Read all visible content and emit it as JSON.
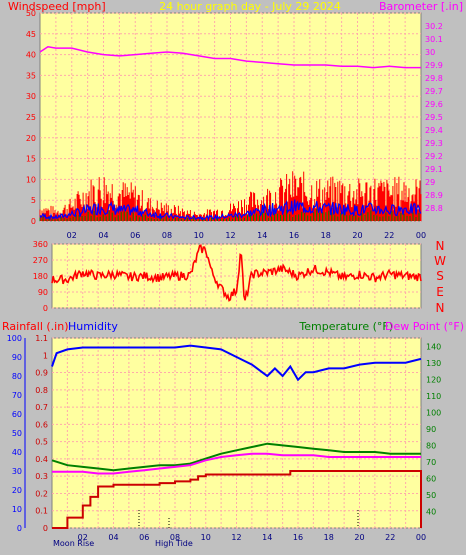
{
  "header": {
    "left_title": "Windspeed [mph]",
    "center_title": "24 hour graph day - July 29 2024",
    "right_title": "Barometer [.in]"
  },
  "colors": {
    "background": "#c0c0c0",
    "plot_bg": "#ffffa0",
    "grid": "#ffaaaa",
    "wind": "#ff0000",
    "gust_blue": "#0000ff",
    "barometer": "#ff00ff",
    "temperature": "#008000",
    "dew_point": "#ff00ff",
    "rain": "#cc0000",
    "humidity": "#0000ff",
    "axis_left": "#ff0000",
    "axis_right": "#ff00ff",
    "axis_temp": "#008000",
    "header_center": "#ffff00"
  },
  "x_ticks": [
    "02",
    "04",
    "06",
    "08",
    "10",
    "12",
    "14",
    "16",
    "18",
    "20",
    "22",
    "00"
  ],
  "panel3_labels": {
    "rainfall": "Rainfall (.in)",
    "humidity": "Humidity",
    "temperature": "Temperature (°F)",
    "dew_point": "Dew Point (°F)"
  },
  "compass": [
    "N",
    "W",
    "S",
    "E",
    "N"
  ],
  "markers": {
    "moon_rise": "Moon Rise",
    "high_tide": "High Tide"
  },
  "chart_data": [
    {
      "type": "line",
      "title": "24 hour graph day - July 29 2024",
      "x_unit": "hour",
      "xlim": [
        0,
        24
      ],
      "y_left": {
        "label": "Windspeed [mph]",
        "ylim": [
          0,
          50
        ],
        "ticks": [
          0,
          5,
          10,
          15,
          20,
          25,
          30,
          35,
          40,
          45,
          50
        ]
      },
      "y_right": {
        "label": "Barometer [.in]",
        "ylim": [
          28.7,
          30.3
        ],
        "ticks": [
          "28.8",
          "28.9",
          "29",
          "29.1",
          "29.2",
          "29.3",
          "29.4",
          "29.5",
          "29.6",
          "29.7",
          "29.8",
          "29.9",
          "30",
          "30.1",
          "30.2"
        ]
      },
      "series": [
        {
          "name": "Barometer [.in]",
          "axis": "right",
          "x": [
            0,
            0.5,
            1,
            2,
            3,
            4,
            5,
            6,
            7,
            8,
            9,
            10,
            11,
            12,
            13,
            14,
            15,
            16,
            17,
            18,
            19,
            20,
            21,
            22,
            23,
            24
          ],
          "y": [
            30.0,
            30.04,
            30.03,
            30.03,
            30.0,
            29.98,
            29.97,
            29.98,
            29.99,
            30.0,
            29.99,
            29.97,
            29.95,
            29.95,
            29.93,
            29.92,
            29.91,
            29.9,
            29.9,
            29.9,
            29.89,
            29.89,
            29.88,
            29.89,
            29.88,
            29.88
          ]
        },
        {
          "name": "Wind gust envelope",
          "axis": "left",
          "x": [
            0,
            1,
            2,
            3,
            4,
            5,
            6,
            7,
            8,
            9,
            10,
            11,
            12,
            13,
            14,
            15,
            16,
            17,
            18,
            19,
            20,
            21,
            22,
            23,
            24
          ],
          "y": [
            4,
            3,
            5,
            9,
            11,
            9,
            8,
            5,
            4,
            3,
            2,
            3,
            4,
            6,
            7,
            9,
            11,
            10,
            9,
            10,
            9,
            10,
            9,
            10,
            9
          ]
        },
        {
          "name": "Wind average",
          "axis": "left",
          "x": [
            0,
            1,
            2,
            3,
            4,
            5,
            6,
            7,
            8,
            9,
            10,
            11,
            12,
            13,
            14,
            15,
            16,
            17,
            18,
            19,
            20,
            21,
            22,
            23,
            24
          ],
          "y": [
            1.5,
            1,
            2,
            3,
            4,
            3,
            3,
            2,
            1.5,
            1,
            1,
            1,
            1.5,
            2,
            3,
            3.5,
            4,
            4,
            3.5,
            3.5,
            3,
            3.5,
            3,
            3.5,
            3
          ]
        }
      ]
    },
    {
      "type": "line",
      "title": "Wind direction",
      "x_unit": "hour",
      "xlim": [
        0,
        24
      ],
      "y_left": {
        "label": "",
        "ylim": [
          0,
          360
        ],
        "ticks": [
          0,
          90,
          180,
          270,
          360
        ]
      },
      "series": [
        {
          "name": "Wind direction",
          "x": [
            0,
            1,
            2,
            3,
            4,
            5,
            6,
            7,
            8,
            9,
            9.6,
            10,
            10.4,
            11,
            11.5,
            12,
            12.3,
            12.5,
            13,
            14,
            15,
            16,
            17,
            18,
            19,
            20,
            21,
            22,
            23,
            24
          ],
          "y": [
            160,
            160,
            200,
            180,
            190,
            175,
            180,
            170,
            180,
            185,
            330,
            330,
            200,
            110,
            60,
            100,
            340,
            20,
            190,
            200,
            220,
            180,
            220,
            200,
            170,
            190,
            170,
            190,
            180,
            175
          ]
        }
      ]
    },
    {
      "type": "line",
      "title": "",
      "x_unit": "hour",
      "xlim": [
        0,
        24
      ],
      "y_left": {
        "label": "Rainfall (.in)",
        "ylim": [
          0,
          1.1
        ],
        "ticks": [
          "0",
          "0.1",
          "0.2",
          "0.3",
          "0.4",
          "0.5",
          "0.6",
          "0.7",
          "0.8",
          "0.9",
          "1",
          "1.1"
        ]
      },
      "y_left_outer": {
        "label": "Humidity",
        "ylim": [
          0,
          100
        ],
        "ticks": [
          0,
          10,
          20,
          30,
          40,
          50,
          60,
          70,
          80,
          90,
          100
        ]
      },
      "y_right": {
        "label": "Temperature (°F)",
        "ylim": [
          30,
          145
        ],
        "ticks": [
          40,
          50,
          60,
          70,
          80,
          90,
          100,
          110,
          120,
          130,
          140
        ]
      },
      "series": [
        {
          "name": "Humidity",
          "axis": "left_outer",
          "x": [
            0,
            0.3,
            1,
            2,
            4,
            6,
            8,
            9,
            10,
            11,
            12,
            13,
            13.5,
            14,
            14.5,
            15,
            15.5,
            16,
            16.5,
            17,
            18,
            19,
            20,
            21,
            22,
            23,
            24
          ],
          "y": [
            85,
            92,
            94,
            95,
            95,
            95,
            95,
            96,
            95,
            94,
            90,
            86,
            83,
            80,
            84,
            80,
            85,
            78,
            82,
            82,
            84,
            84,
            86,
            87,
            87,
            87,
            89
          ]
        },
        {
          "name": "Temperature (°F)",
          "axis": "right",
          "x": [
            0,
            1,
            2,
            3,
            4,
            5,
            6,
            7,
            8,
            9,
            10,
            11,
            12,
            13,
            14,
            15,
            16,
            17,
            18,
            19,
            20,
            21,
            22,
            23,
            24
          ],
          "y": [
            71,
            68,
            67,
            66,
            65,
            66,
            67,
            68,
            68,
            69,
            72,
            75,
            77,
            79,
            81,
            80,
            79,
            78,
            77,
            76,
            76,
            76,
            75,
            75,
            75
          ]
        },
        {
          "name": "Dew Point (°F)",
          "axis": "right",
          "x": [
            0,
            1,
            2,
            3,
            4,
            5,
            6,
            7,
            8,
            9,
            10,
            11,
            12,
            13,
            14,
            15,
            16,
            17,
            18,
            19,
            20,
            21,
            22,
            23,
            24
          ],
          "y": [
            64,
            64,
            64,
            63,
            63,
            64,
            65,
            66,
            67,
            68,
            71,
            73,
            74,
            75,
            75,
            74,
            74,
            74,
            73,
            73,
            73,
            73,
            73,
            73,
            73
          ]
        },
        {
          "name": "Rainfall (.in)",
          "axis": "left",
          "x": [
            0,
            1,
            2,
            2.5,
            3,
            4,
            5,
            6,
            7,
            8,
            9,
            9.5,
            10,
            11,
            12,
            13,
            14,
            15,
            15.5,
            16,
            18,
            20,
            22,
            23.9,
            24
          ],
          "y": [
            0,
            0.06,
            0.13,
            0.18,
            0.24,
            0.25,
            0.25,
            0.25,
            0.26,
            0.27,
            0.28,
            0.3,
            0.31,
            0.31,
            0.31,
            0.31,
            0.31,
            0.31,
            0.33,
            0.33,
            0.33,
            0.33,
            0.33,
            0.33,
            0
          ]
        }
      ]
    }
  ]
}
